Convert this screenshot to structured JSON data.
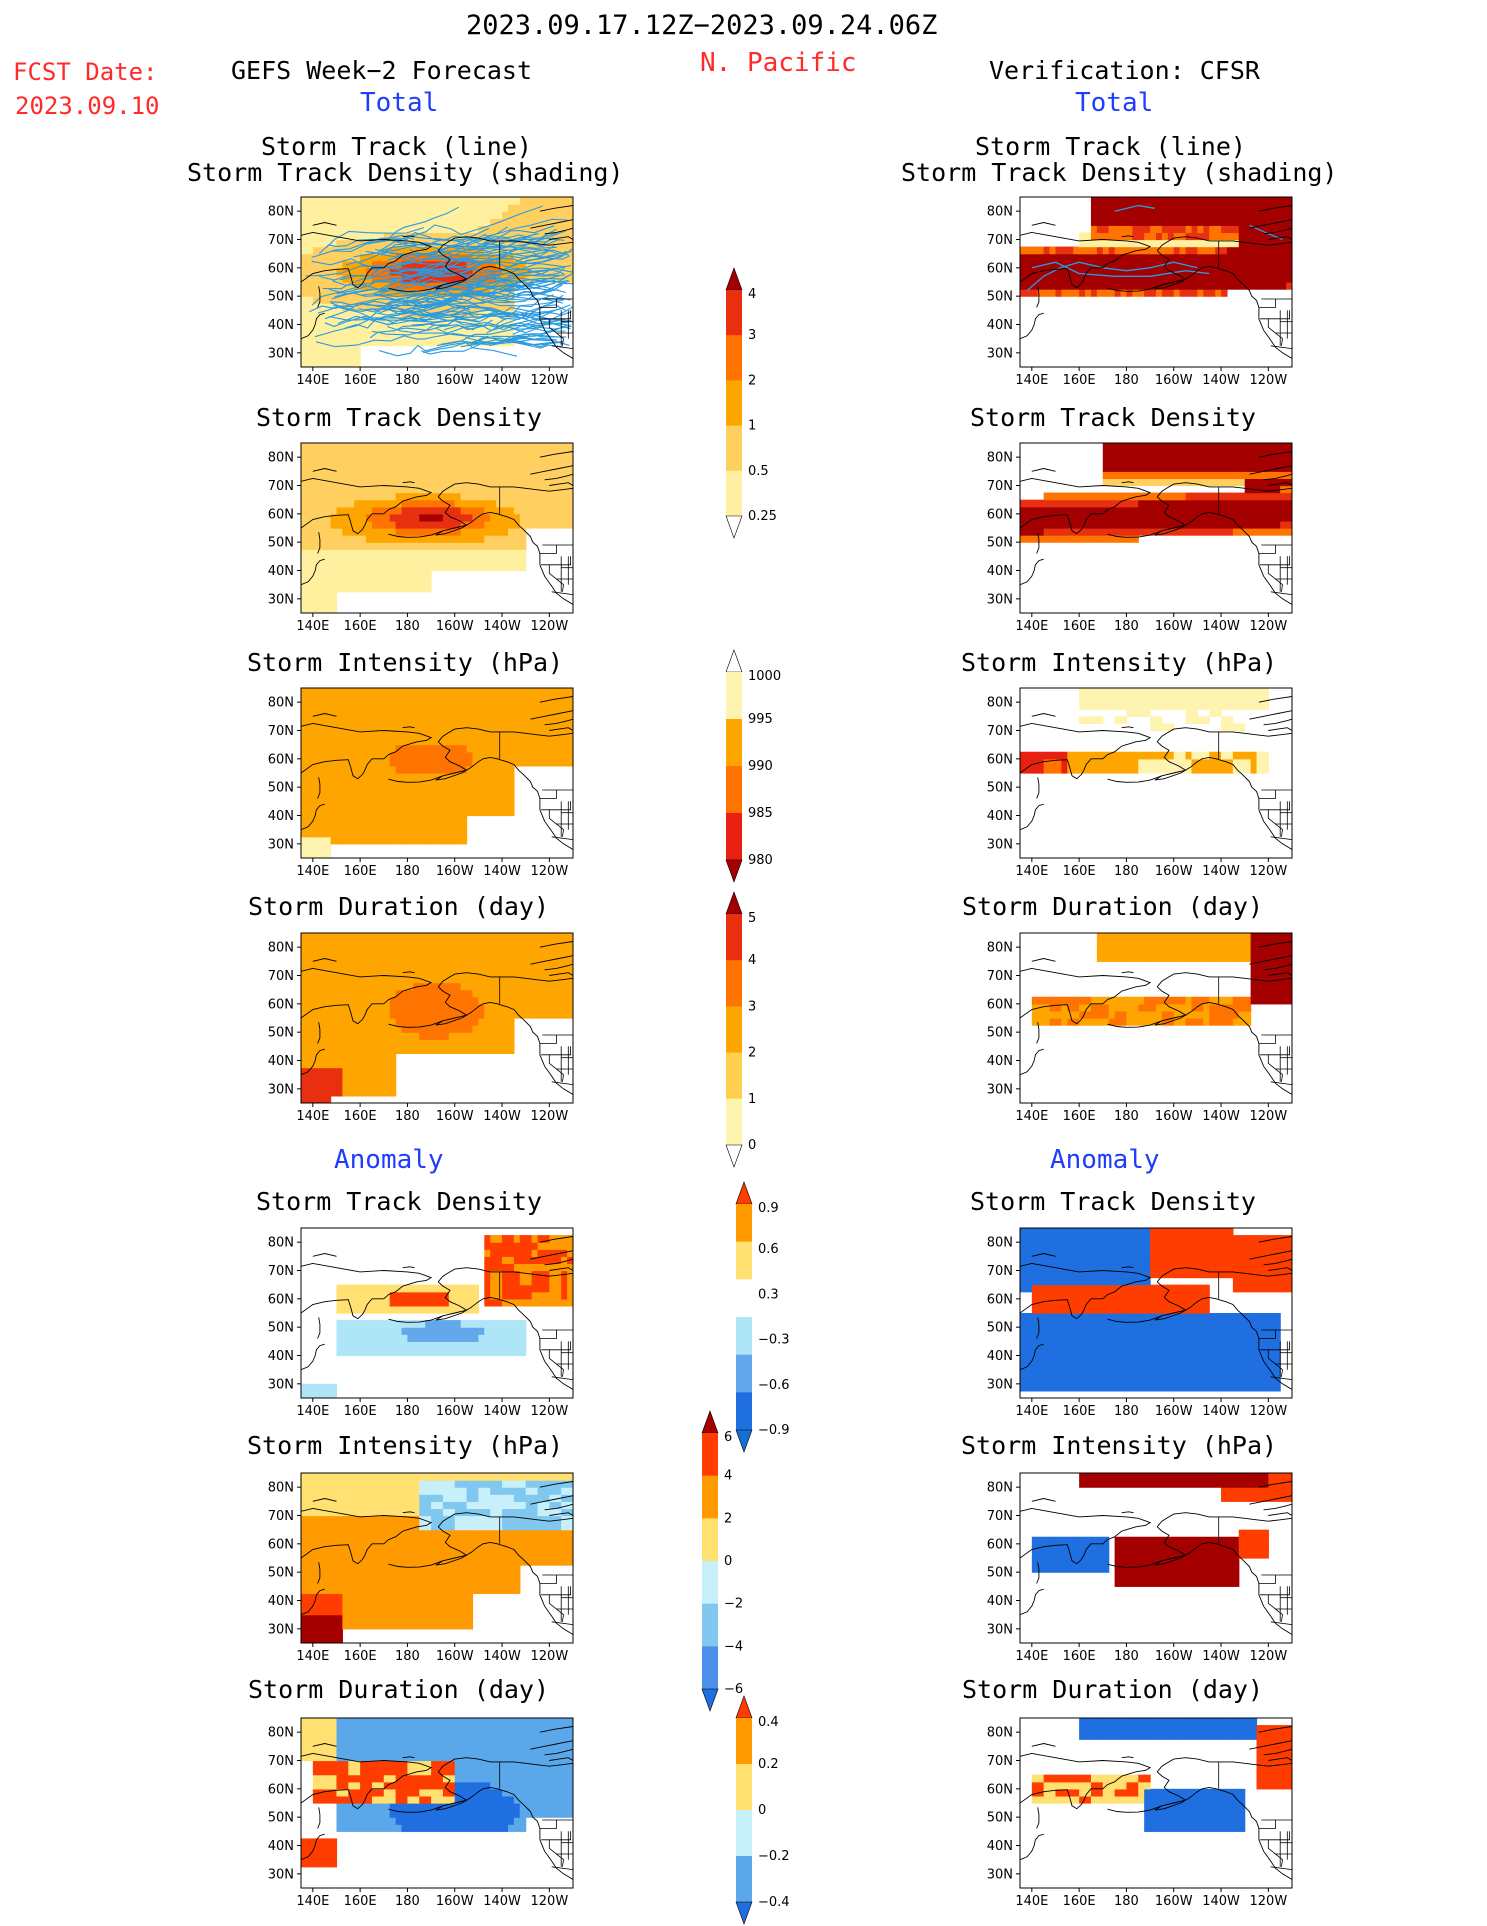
{
  "header": {
    "period": "2023.09.17.12Z−2023.09.24.06Z",
    "fcst_label": "FCST Date:",
    "fcst_date": "2023.09.10",
    "region": "N. Pacific",
    "left_title": "GEFS Week−2 Forecast",
    "right_title": "Verification: CFSR",
    "total_label": "Total",
    "anomaly_label": "Anomaly"
  },
  "axes": {
    "lon_ticks": [
      "140E",
      "160E",
      "180",
      "160W",
      "140W",
      "120W"
    ],
    "lat_ticks": [
      "80N",
      "70N",
      "60N",
      "50N",
      "40N",
      "30N"
    ],
    "lon_range_deg_east": [
      135,
      250
    ],
    "lat_range": [
      25,
      85
    ]
  },
  "panel_titles": {
    "track_line": "Storm Track (line)",
    "track_shading": "Storm Track Density (shading)",
    "density": "Storm Track Density",
    "intensity": "Storm Intensity (hPa)",
    "duration": "Storm Duration (day)"
  },
  "colorbars": [
    {
      "id": "density",
      "levels": [
        "0.25",
        "0.5",
        "1",
        "2",
        "3",
        "4"
      ],
      "colors": [
        "#ffffff",
        "#fff0a0",
        "#ffd060",
        "#ffa500",
        "#ff7400",
        "#e83010",
        "#a50000"
      ]
    },
    {
      "id": "intensity",
      "levels": [
        "1000",
        "995",
        "990",
        "985",
        "980"
      ],
      "colors": [
        "#ffffff",
        "#fff3b0",
        "#ffa500",
        "#ff7400",
        "#e82010",
        "#a50000"
      ]
    },
    {
      "id": "duration",
      "levels": [
        "0",
        "1",
        "2",
        "3",
        "4",
        "5"
      ],
      "colors": [
        "#ffffff",
        "#fff3b0",
        "#ffd050",
        "#ffa500",
        "#ff7400",
        "#e83010",
        "#a50000"
      ]
    },
    {
      "id": "density_anom",
      "levels": [
        "0.9",
        "0.6",
        "0.3",
        "−0.3",
        "−0.6",
        "−0.9"
      ],
      "colors": [
        "#ff3d00",
        "#ff9a00",
        "#ffe070",
        "#ffffff",
        "#aee6f7",
        "#62a8ea",
        "#1f6fe0",
        "#1570d6"
      ]
    },
    {
      "id": "intensity_anom",
      "levels": [
        "6",
        "4",
        "2",
        "0",
        "−2",
        "−4",
        "−6"
      ],
      "colors": [
        "#a50000",
        "#ff3d00",
        "#ff9a00",
        "#ffe070",
        "#c8f0fb",
        "#80c8f0",
        "#4a90e8",
        "#1f6fe0"
      ]
    },
    {
      "id": "duration_anom",
      "levels": [
        "0.4",
        "0.2",
        "0",
        "−0.2",
        "−0.4"
      ],
      "colors": [
        "#ff3d00",
        "#ff9a00",
        "#ffe070",
        "#c8f0fb",
        "#5aa8ea",
        "#1f6fe0"
      ]
    }
  ],
  "chart_data": [
    {
      "type": "heatmap",
      "panel": "gefs_track",
      "title": "Storm Track (line) / Storm Track Density (shading)",
      "grid": {
        "lon": [
          135,
          250
        ],
        "lat": [
          25,
          85
        ]
      },
      "fields": [
        {
          "region": "basin-wide",
          "lon": [
            135,
            250
          ],
          "lat": [
            28,
            85
          ],
          "value": "0.5-1"
        },
        {
          "region": "central band",
          "lon": [
            160,
            230
          ],
          "lat": [
            50,
            68
          ],
          "value": "2-3"
        },
        {
          "region": "core",
          "lon": [
            175,
            205
          ],
          "lat": [
            55,
            64
          ],
          "value": "3-4"
        }
      ],
      "track_lines": "many ensemble tracks"
    },
    {
      "type": "heatmap",
      "panel": "cfsr_track",
      "title": "Storm Track (line) / Storm Track Density (shading)",
      "fields": [
        {
          "region": "arctic band",
          "lon": [
            155,
            250
          ],
          "lat": [
            68,
            85
          ],
          "value": "2->4"
        },
        {
          "region": "main band",
          "lon": [
            135,
            235
          ],
          "lat": [
            52,
            64
          ],
          "value": ">4"
        }
      ]
    },
    {
      "type": "heatmap",
      "panel": "gefs_density",
      "title": "Storm Track Density",
      "fields": [
        {
          "region": "broad",
          "lon": [
            135,
            250
          ],
          "lat": [
            28,
            85
          ],
          "value": "0.5-2"
        },
        {
          "region": "band",
          "lon": [
            145,
            225
          ],
          "lat": [
            50,
            66
          ],
          "value": "2-3"
        },
        {
          "region": "core",
          "lon": [
            175,
            205
          ],
          "lat": [
            55,
            63
          ],
          "value": "4"
        }
      ]
    },
    {
      "type": "heatmap",
      "panel": "cfsr_density",
      "title": "Storm Track Density",
      "fields": [
        {
          "region": "arctic band",
          "lon": [
            165,
            250
          ],
          "lat": [
            70,
            85
          ],
          "value": ">4"
        },
        {
          "region": "main band",
          "lon": [
            135,
            235
          ],
          "lat": [
            52,
            64
          ],
          "value": ">4"
        }
      ]
    },
    {
      "type": "heatmap",
      "panel": "gefs_intensity",
      "title": "Storm Intensity (hPa)",
      "fields": [
        {
          "region": "broad",
          "lon": [
            138,
            250
          ],
          "lat": [
            28,
            85
          ],
          "value": "990-995"
        },
        {
          "region": "center",
          "lon": [
            170,
            210
          ],
          "lat": [
            53,
            68
          ],
          "value": "985-990"
        }
      ]
    },
    {
      "type": "heatmap",
      "panel": "cfsr_intensity",
      "title": "Storm Intensity (hPa)",
      "fields": [
        {
          "region": "north",
          "lon": [
            160,
            250
          ],
          "lat": [
            78,
            85
          ],
          "value": "995-1000"
        },
        {
          "region": "band",
          "lon": [
            135,
            240
          ],
          "lat": [
            55,
            63
          ],
          "value": "980-995"
        }
      ]
    },
    {
      "type": "heatmap",
      "panel": "gefs_duration",
      "title": "Storm Duration (day)",
      "fields": [
        {
          "region": "broad",
          "lon": [
            135,
            250
          ],
          "lat": [
            28,
            85
          ],
          "value": "2-3"
        },
        {
          "region": "center",
          "lon": [
            170,
            215
          ],
          "lat": [
            48,
            70
          ],
          "value": "3-4"
        },
        {
          "region": "southwest",
          "lon": [
            140,
            153
          ],
          "lat": [
            28,
            40
          ],
          "value": "4-5"
        }
      ]
    },
    {
      "type": "heatmap",
      "panel": "cfsr_duration",
      "title": "Storm Duration (day)",
      "fields": [
        {
          "region": "arctic",
          "lon": [
            165,
            235
          ],
          "lat": [
            75,
            85
          ],
          "value": "2-3"
        },
        {
          "region": "band",
          "lon": [
            135,
            235
          ],
          "lat": [
            52,
            65
          ],
          "value": "3-4"
        },
        {
          "region": "northeast",
          "lon": [
            225,
            250
          ],
          "lat": [
            62,
            85
          ],
          "value": ">5"
        }
      ]
    },
    {
      "type": "heatmap",
      "panel": "gefs_density_anom",
      "title": "Storm Track Density (anomaly)",
      "fields": [
        {
          "region": "positive band",
          "lon": [
            150,
            210
          ],
          "lat": [
            55,
            65
          ],
          "value": "0.3-0.9"
        },
        {
          "region": "northeast",
          "lon": [
            210,
            250
          ],
          "lat": [
            58,
            82
          ],
          "value": "0.6-0.9"
        },
        {
          "region": "negative",
          "lon": [
            145,
            230
          ],
          "lat": [
            40,
            52
          ],
          "value": "-0.3 to -0.9"
        }
      ]
    },
    {
      "type": "heatmap",
      "panel": "cfsr_density_anom",
      "title": "Storm Track Density (anomaly)",
      "fields": [
        {
          "region": "positive",
          "lon": [
            140,
            220
          ],
          "lat": [
            55,
            63
          ],
          "value": ">0.9"
        },
        {
          "region": "negative",
          "lon": [
            135,
            245
          ],
          "lat": [
            27,
            52
          ],
          "value": "< -0.9"
        }
      ]
    },
    {
      "type": "heatmap",
      "panel": "gefs_intensity_anom",
      "title": "Storm Intensity (hPa) (anomaly)",
      "fields": [
        {
          "region": "broad positive",
          "lon": [
            135,
            250
          ],
          "lat": [
            28,
            85
          ],
          "value": "2-4"
        },
        {
          "region": "negative",
          "lon": [
            185,
            250
          ],
          "lat": [
            65,
            82
          ],
          "value": "0 to -4"
        }
      ]
    },
    {
      "type": "heatmap",
      "panel": "cfsr_intensity_anom",
      "title": "Storm Intensity (hPa) (anomaly)",
      "fields": [
        {
          "region": "positive",
          "lon": [
            175,
            230
          ],
          "lat": [
            47,
            63
          ],
          "value": ">6"
        },
        {
          "region": "negative",
          "lon": [
            135,
            175
          ],
          "lat": [
            50,
            63
          ],
          "value": "< -6"
        }
      ]
    },
    {
      "type": "heatmap",
      "panel": "gefs_duration_anom",
      "title": "Storm Duration (day) (anomaly)",
      "fields": [
        {
          "region": "negative",
          "lon": [
            135,
            250
          ],
          "lat": [
            45,
            85
          ],
          "value": "-0.2 to -0.4"
        },
        {
          "region": "positive",
          "lon": [
            140,
            200
          ],
          "lat": [
            55,
            70
          ],
          "value": "0.2-0.4"
        }
      ]
    },
    {
      "type": "heatmap",
      "panel": "cfsr_duration_anom",
      "title": "Storm Duration (day) (anomaly)",
      "fields": [
        {
          "region": "negative",
          "lon": [
            190,
            240
          ],
          "lat": [
            48,
            85
          ],
          "value": "< -0.4"
        },
        {
          "region": "positive",
          "lon": [
            135,
            200
          ],
          "lat": [
            55,
            65
          ],
          "value": "0.2-0.4"
        }
      ]
    }
  ]
}
